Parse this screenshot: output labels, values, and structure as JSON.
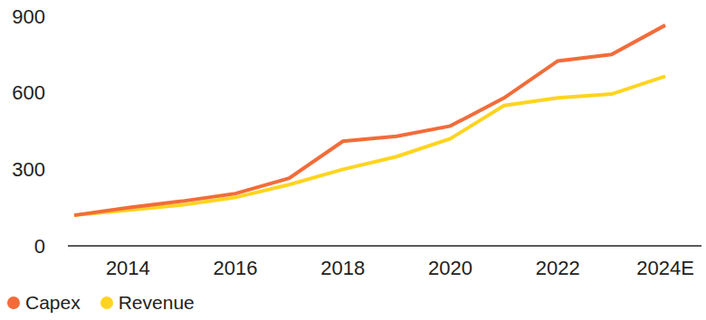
{
  "chart_data": {
    "type": "line",
    "categories": [
      null,
      "2014",
      null,
      "2016",
      null,
      "2018",
      null,
      "2020",
      null,
      "2022",
      null,
      "2024E"
    ],
    "series": [
      {
        "name": "Capex",
        "color": "#f26c3a",
        "values": [
          120,
          150,
          175,
          205,
          265,
          410,
          430,
          470,
          580,
          725,
          750,
          865
        ]
      },
      {
        "name": "Revenue",
        "color": "#ffd41f",
        "values": [
          120,
          140,
          160,
          190,
          240,
          300,
          350,
          420,
          550,
          580,
          595,
          665
        ]
      }
    ],
    "ylim": [
      0,
      900
    ],
    "yticks": [
      0,
      300,
      600,
      900
    ],
    "grid": false,
    "legend": "bottom-left"
  }
}
